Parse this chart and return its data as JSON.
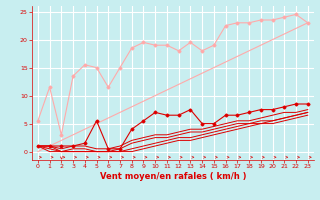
{
  "bg_color": "#c8eef0",
  "grid_color": "#ffffff",
  "line_color_light": "#ffaaaa",
  "line_color_dark": "#dd0000",
  "x_label": "Vent moyen/en rafales ( km/h )",
  "ylim": [
    -1.5,
    26
  ],
  "xlim": [
    -0.5,
    23.5
  ],
  "yticks": [
    0,
    5,
    10,
    15,
    20,
    25
  ],
  "xticks": [
    0,
    1,
    2,
    3,
    4,
    5,
    6,
    7,
    8,
    9,
    10,
    11,
    12,
    13,
    14,
    15,
    16,
    17,
    18,
    19,
    20,
    21,
    22,
    23
  ],
  "series_light_1": [
    5.5,
    11.5,
    3.0,
    13.5,
    15.5,
    15.0,
    11.5,
    15.0,
    18.5,
    19.5,
    19.0,
    19.0,
    18.0,
    19.5,
    18.0,
    19.0,
    22.5,
    23.0,
    23.0,
    23.5,
    23.5,
    24.0,
    24.5,
    23.0
  ],
  "series_light_2": [
    0.0,
    1.0,
    2.0,
    3.0,
    4.0,
    5.0,
    6.0,
    7.0,
    8.0,
    9.0,
    10.0,
    11.0,
    12.0,
    13.0,
    14.0,
    15.0,
    16.0,
    17.0,
    18.0,
    19.0,
    20.0,
    21.0,
    22.0,
    23.0
  ],
  "series_dark_1": [
    1.0,
    1.0,
    1.0,
    1.0,
    1.5,
    5.5,
    0.5,
    0.5,
    4.0,
    5.5,
    7.0,
    6.5,
    6.5,
    7.5,
    5.0,
    5.0,
    6.5,
    6.5,
    7.0,
    7.5,
    7.5,
    8.0,
    8.5,
    8.5
  ],
  "series_dark_2": [
    1.0,
    1.0,
    0.5,
    1.0,
    1.0,
    0.5,
    0.5,
    1.0,
    2.0,
    2.5,
    3.0,
    3.0,
    3.5,
    4.0,
    4.0,
    4.5,
    5.0,
    5.5,
    5.5,
    6.0,
    6.5,
    7.0,
    7.0,
    7.5
  ],
  "series_dark_3": [
    1.0,
    1.0,
    0.0,
    0.5,
    0.5,
    0.0,
    0.0,
    0.5,
    1.5,
    2.0,
    2.5,
    2.5,
    3.0,
    3.5,
    3.5,
    4.0,
    4.5,
    5.0,
    5.0,
    5.5,
    5.5,
    6.0,
    6.5,
    7.0
  ],
  "series_dark_4": [
    1.0,
    0.5,
    0.0,
    0.0,
    0.0,
    0.0,
    0.0,
    0.0,
    0.5,
    1.0,
    1.5,
    2.0,
    2.5,
    2.5,
    3.0,
    3.5,
    4.0,
    4.5,
    5.0,
    5.0,
    5.5,
    6.0,
    6.5,
    7.0
  ],
  "series_dark_5": [
    1.0,
    0.0,
    0.0,
    0.0,
    0.0,
    0.0,
    0.0,
    0.0,
    0.0,
    0.5,
    1.0,
    1.5,
    2.0,
    2.0,
    2.5,
    3.0,
    3.5,
    4.0,
    4.5,
    5.0,
    5.0,
    5.5,
    6.0,
    6.5
  ],
  "xlabel_fontsize": 6,
  "tick_fontsize": 4.5,
  "marker_size": 1.5
}
